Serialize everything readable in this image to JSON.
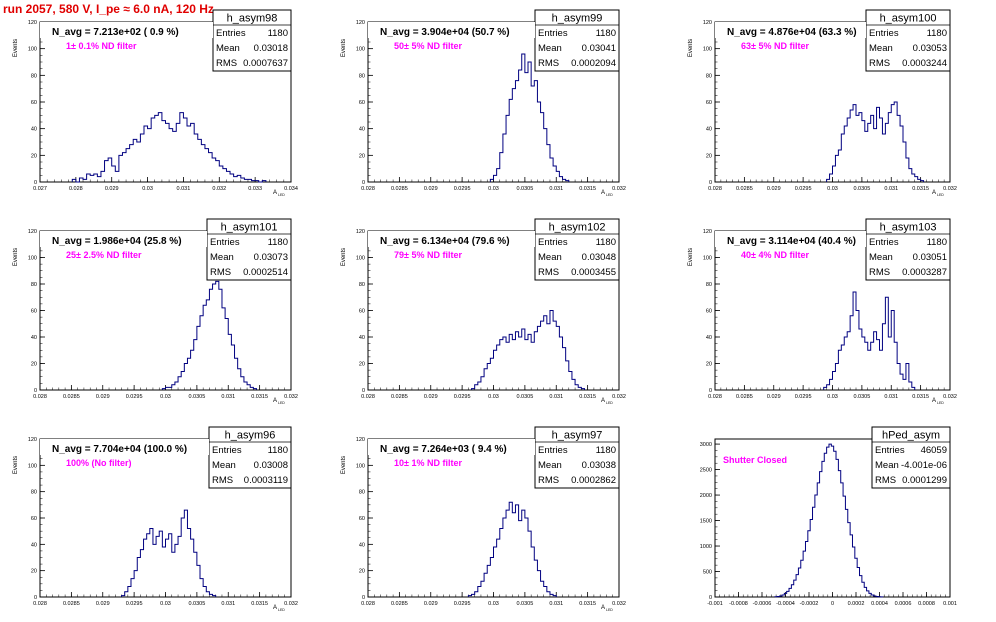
{
  "page_title": "run 2057,   580 V, I_pe ≈ 6.0 nA, 120 Hz",
  "colors": {
    "title": "#e00000",
    "filter_label": "#ff00ff",
    "histogram": "#000080",
    "axis": "#000000"
  },
  "chart_data": [
    {
      "type": "bar",
      "histogram": "h_asym98",
      "title": "N_avg = 7.213e+02 ( 0.9 %)",
      "annotation": "1± 0.1% ND filter",
      "stats": {
        "entries_label": "Entries",
        "entries": "1180",
        "mean_label": "Mean",
        "mean": "0.03018",
        "rms_label": "RMS",
        "rms": "0.0007637"
      },
      "xlabel": "A",
      "xlabel_sub": "LED",
      "ylabel": "Events",
      "xlim": [
        0.027,
        0.034
      ],
      "ylim": [
        0,
        120
      ],
      "xticks": [
        "0.027",
        "0.028",
        "0.029",
        "0.03",
        "0.031",
        "0.032",
        "0.033",
        "0.034"
      ],
      "yticks": [
        "0",
        "20",
        "40",
        "60",
        "80",
        "100",
        "120"
      ],
      "bins": {
        "x0": 0.0279,
        "width": 0.0001,
        "values": [
          2,
          0,
          3,
          2,
          6,
          5,
          6,
          4,
          8,
          16,
          18,
          12,
          8,
          20,
          22,
          25,
          28,
          32,
          30,
          36,
          42,
          40,
          48,
          50,
          52,
          46,
          44,
          40,
          38,
          44,
          52,
          48,
          42,
          44,
          36,
          32,
          28,
          25,
          22,
          18,
          16,
          12,
          10,
          8,
          6,
          4,
          5,
          3,
          2,
          2,
          1,
          1,
          0,
          1
        ]
      }
    },
    {
      "type": "bar",
      "histogram": "h_asym99",
      "title": "N_avg = 3.904e+04 (50.7 %)",
      "annotation": "50± 5% ND filter",
      "stats": {
        "entries_label": "Entries",
        "entries": "1180",
        "mean_label": "Mean",
        "mean": "0.03041",
        "rms_label": "RMS",
        "rms": "0.0002094"
      },
      "xlabel": "A",
      "xlabel_sub": "LED",
      "ylabel": "Events",
      "xlim": [
        0.028,
        0.032
      ],
      "ylim": [
        0,
        120
      ],
      "xticks": [
        "0.028",
        "0.0285",
        "0.029",
        "0.0295",
        "0.03",
        "0.0305",
        "0.031",
        "0.0315",
        "0.032"
      ],
      "yticks": [
        "0",
        "20",
        "40",
        "60",
        "80",
        "100",
        "120"
      ],
      "bins": {
        "x0": 0.02995,
        "width": 5e-05,
        "values": [
          2,
          5,
          10,
          22,
          36,
          50,
          62,
          70,
          76,
          84,
          96,
          82,
          90,
          72,
          76,
          60,
          52,
          40,
          28,
          18,
          12,
          8,
          4,
          2,
          1
        ]
      }
    },
    {
      "type": "bar",
      "histogram": "h_asym100",
      "title": "N_avg = 4.876e+04 (63.3 %)",
      "annotation": "63± 5% ND filter",
      "stats": {
        "entries_label": "Entries",
        "entries": "1180",
        "mean_label": "Mean",
        "mean": "0.03053",
        "rms_label": "RMS",
        "rms": "0.0003244"
      },
      "xlabel": "A",
      "xlabel_sub": "LED",
      "ylabel": "Events",
      "xlim": [
        0.028,
        0.032
      ],
      "ylim": [
        0,
        120
      ],
      "xticks": [
        "0.028",
        "0.0285",
        "0.029",
        "0.0295",
        "0.03",
        "0.0305",
        "0.031",
        "0.0315",
        "0.032"
      ],
      "yticks": [
        "0",
        "20",
        "40",
        "60",
        "80",
        "100",
        "120"
      ],
      "bins": {
        "x0": 0.0299,
        "width": 5e-05,
        "values": [
          2,
          6,
          12,
          20,
          24,
          36,
          42,
          48,
          54,
          58,
          50,
          52,
          46,
          38,
          44,
          50,
          40,
          56,
          48,
          36,
          44,
          52,
          58,
          60,
          50,
          42,
          30,
          18,
          10,
          6,
          4,
          2,
          1
        ]
      }
    },
    {
      "type": "bar",
      "histogram": "h_asym101",
      "title": "N_avg = 1.986e+04 (25.8 %)",
      "annotation": "25± 2.5% ND filter",
      "stats": {
        "entries_label": "Entries",
        "entries": "1180",
        "mean_label": "Mean",
        "mean": "0.03073",
        "rms_label": "RMS",
        "rms": "0.0002514"
      },
      "xlabel": "A",
      "xlabel_sub": "LED",
      "ylabel": "Events",
      "xlim": [
        0.028,
        0.032
      ],
      "ylim": [
        0,
        120
      ],
      "xticks": [
        "0.028",
        "0.0285",
        "0.029",
        "0.0295",
        "0.03",
        "0.0305",
        "0.031",
        "0.0315",
        "0.032"
      ],
      "yticks": [
        "0",
        "20",
        "40",
        "60",
        "80",
        "100",
        "120"
      ],
      "bins": {
        "x0": 0.02995,
        "width": 5e-05,
        "values": [
          1,
          2,
          2,
          4,
          6,
          10,
          14,
          20,
          24,
          30,
          38,
          48,
          56,
          64,
          68,
          76,
          80,
          82,
          76,
          62,
          54,
          42,
          34,
          24,
          16,
          10,
          6,
          4,
          2,
          1
        ]
      }
    },
    {
      "type": "bar",
      "histogram": "h_asym102",
      "title": "N_avg = 6.134e+04 (79.6 %)",
      "annotation": "79± 5% ND filter",
      "stats": {
        "entries_label": "Entries",
        "entries": "1180",
        "mean_label": "Mean",
        "mean": "0.03048",
        "rms_label": "RMS",
        "rms": "0.0003455"
      },
      "xlabel": "A",
      "xlabel_sub": "LED",
      "ylabel": "Events",
      "xlim": [
        0.028,
        0.032
      ],
      "ylim": [
        0,
        120
      ],
      "xticks": [
        "0.028",
        "0.0285",
        "0.029",
        "0.0295",
        "0.03",
        "0.0305",
        "0.031",
        "0.0315",
        "0.032"
      ],
      "yticks": [
        "0",
        "20",
        "40",
        "60",
        "80",
        "100",
        "120"
      ],
      "bins": {
        "x0": 0.02965,
        "width": 5e-05,
        "values": [
          1,
          4,
          6,
          10,
          16,
          20,
          24,
          30,
          34,
          38,
          40,
          36,
          42,
          38,
          44,
          40,
          46,
          38,
          42,
          36,
          44,
          48,
          52,
          56,
          50,
          60,
          52,
          48,
          40,
          32,
          22,
          14,
          8,
          4,
          2,
          1
        ]
      }
    },
    {
      "type": "bar",
      "histogram": "h_asym103",
      "title": "N_avg = 3.114e+04 (40.4 %)",
      "annotation": "40± 4% ND filter",
      "stats": {
        "entries_label": "Entries",
        "entries": "1180",
        "mean_label": "Mean",
        "mean": "0.03051",
        "rms_label": "RMS",
        "rms": "0.0003287"
      },
      "xlabel": "A",
      "xlabel_sub": "LED",
      "ylabel": "Events",
      "xlim": [
        0.028,
        0.032
      ],
      "ylim": [
        0,
        120
      ],
      "xticks": [
        "0.028",
        "0.0285",
        "0.029",
        "0.0295",
        "0.03",
        "0.0305",
        "0.031",
        "0.0315",
        "0.032"
      ],
      "yticks": [
        "0",
        "20",
        "40",
        "60",
        "80",
        "100",
        "120"
      ],
      "bins": {
        "x0": 0.02985,
        "width": 5e-05,
        "values": [
          2,
          4,
          8,
          14,
          20,
          30,
          34,
          40,
          44,
          56,
          74,
          60,
          46,
          40,
          36,
          30,
          36,
          44,
          38,
          30,
          50,
          70,
          40,
          60,
          36,
          20,
          12,
          8,
          20,
          6,
          2
        ]
      }
    },
    {
      "type": "bar",
      "histogram": "h_asym96",
      "title": "N_avg = 7.704e+04 (100.0 %)",
      "annotation": "100% (No filter)",
      "stats": {
        "entries_label": "Entries",
        "entries": "1180",
        "mean_label": "Mean",
        "mean": "0.03008",
        "rms_label": "RMS",
        "rms": "0.0003119"
      },
      "xlabel": "A",
      "xlabel_sub": "LED",
      "ylabel": "Events",
      "xlim": [
        0.028,
        0.032
      ],
      "ylim": [
        0,
        120
      ],
      "xticks": [
        "0.028",
        "0.0285",
        "0.029",
        "0.0295",
        "0.03",
        "0.0305",
        "0.031",
        "0.0315",
        "0.032"
      ],
      "yticks": [
        "0",
        "20",
        "40",
        "60",
        "80",
        "100",
        "120"
      ],
      "bins": {
        "x0": 0.0293,
        "width": 5e-05,
        "values": [
          1,
          4,
          8,
          14,
          20,
          30,
          36,
          44,
          48,
          52,
          40,
          46,
          50,
          38,
          44,
          48,
          34,
          40,
          46,
          60,
          66,
          52,
          44,
          34,
          24,
          14,
          8,
          4,
          2,
          1
        ]
      }
    },
    {
      "type": "bar",
      "histogram": "h_asym97",
      "title": "N_avg = 7.264e+03 ( 9.4 %)",
      "annotation": "10± 1% ND filter",
      "stats": {
        "entries_label": "Entries",
        "entries": "1180",
        "mean_label": "Mean",
        "mean": "0.03038",
        "rms_label": "RMS",
        "rms": "0.0002862"
      },
      "xlabel": "A",
      "xlabel_sub": "LED",
      "ylabel": "Events",
      "xlim": [
        0.028,
        0.032
      ],
      "ylim": [
        0,
        120
      ],
      "xticks": [
        "0.028",
        "0.0285",
        "0.029",
        "0.0295",
        "0.03",
        "0.0305",
        "0.031",
        "0.0315",
        "0.032"
      ],
      "yticks": [
        "0",
        "20",
        "40",
        "60",
        "80",
        "100",
        "120"
      ],
      "bins": {
        "x0": 0.0296,
        "width": 5e-05,
        "values": [
          1,
          2,
          4,
          8,
          12,
          18,
          24,
          30,
          38,
          44,
          52,
          60,
          66,
          72,
          64,
          70,
          58,
          66,
          60,
          50,
          38,
          28,
          20,
          12,
          8,
          4,
          2,
          1
        ]
      }
    },
    {
      "type": "bar",
      "histogram": "hPed_asym",
      "title": "",
      "annotation": "Shutter Closed",
      "stats": {
        "entries_label": "Entries",
        "entries": "46059",
        "mean_label": "Mean",
        "mean": "-4.001e-06",
        "rms_label": "RMS",
        "rms": "0.0001299"
      },
      "xlabel": "",
      "xlabel_sub": "",
      "ylabel": "",
      "xlim": [
        -0.001,
        0.001
      ],
      "ylim": [
        0,
        3100
      ],
      "xticks": [
        "-0.001",
        "-0.0008",
        "-0.0006",
        "-0.0004",
        "-0.0002",
        "0",
        "0.0002",
        "0.0004",
        "0.0006",
        "0.0008",
        "0.001"
      ],
      "yticks": [
        "0",
        "500",
        "1000",
        "1500",
        "2000",
        "2500",
        "3000"
      ],
      "bins": {
        "x0": -0.00049,
        "width": 2e-05,
        "values": [
          5,
          10,
          20,
          40,
          70,
          110,
          170,
          240,
          330,
          440,
          570,
          720,
          900,
          1090,
          1300,
          1520,
          1760,
          2000,
          2240,
          2460,
          2660,
          2820,
          2940,
          3000,
          2960,
          2860,
          2700,
          2480,
          2240,
          1980,
          1720,
          1460,
          1220,
          980,
          760,
          580,
          420,
          290,
          190,
          120,
          70,
          40,
          20,
          10,
          5,
          2
        ]
      }
    }
  ]
}
